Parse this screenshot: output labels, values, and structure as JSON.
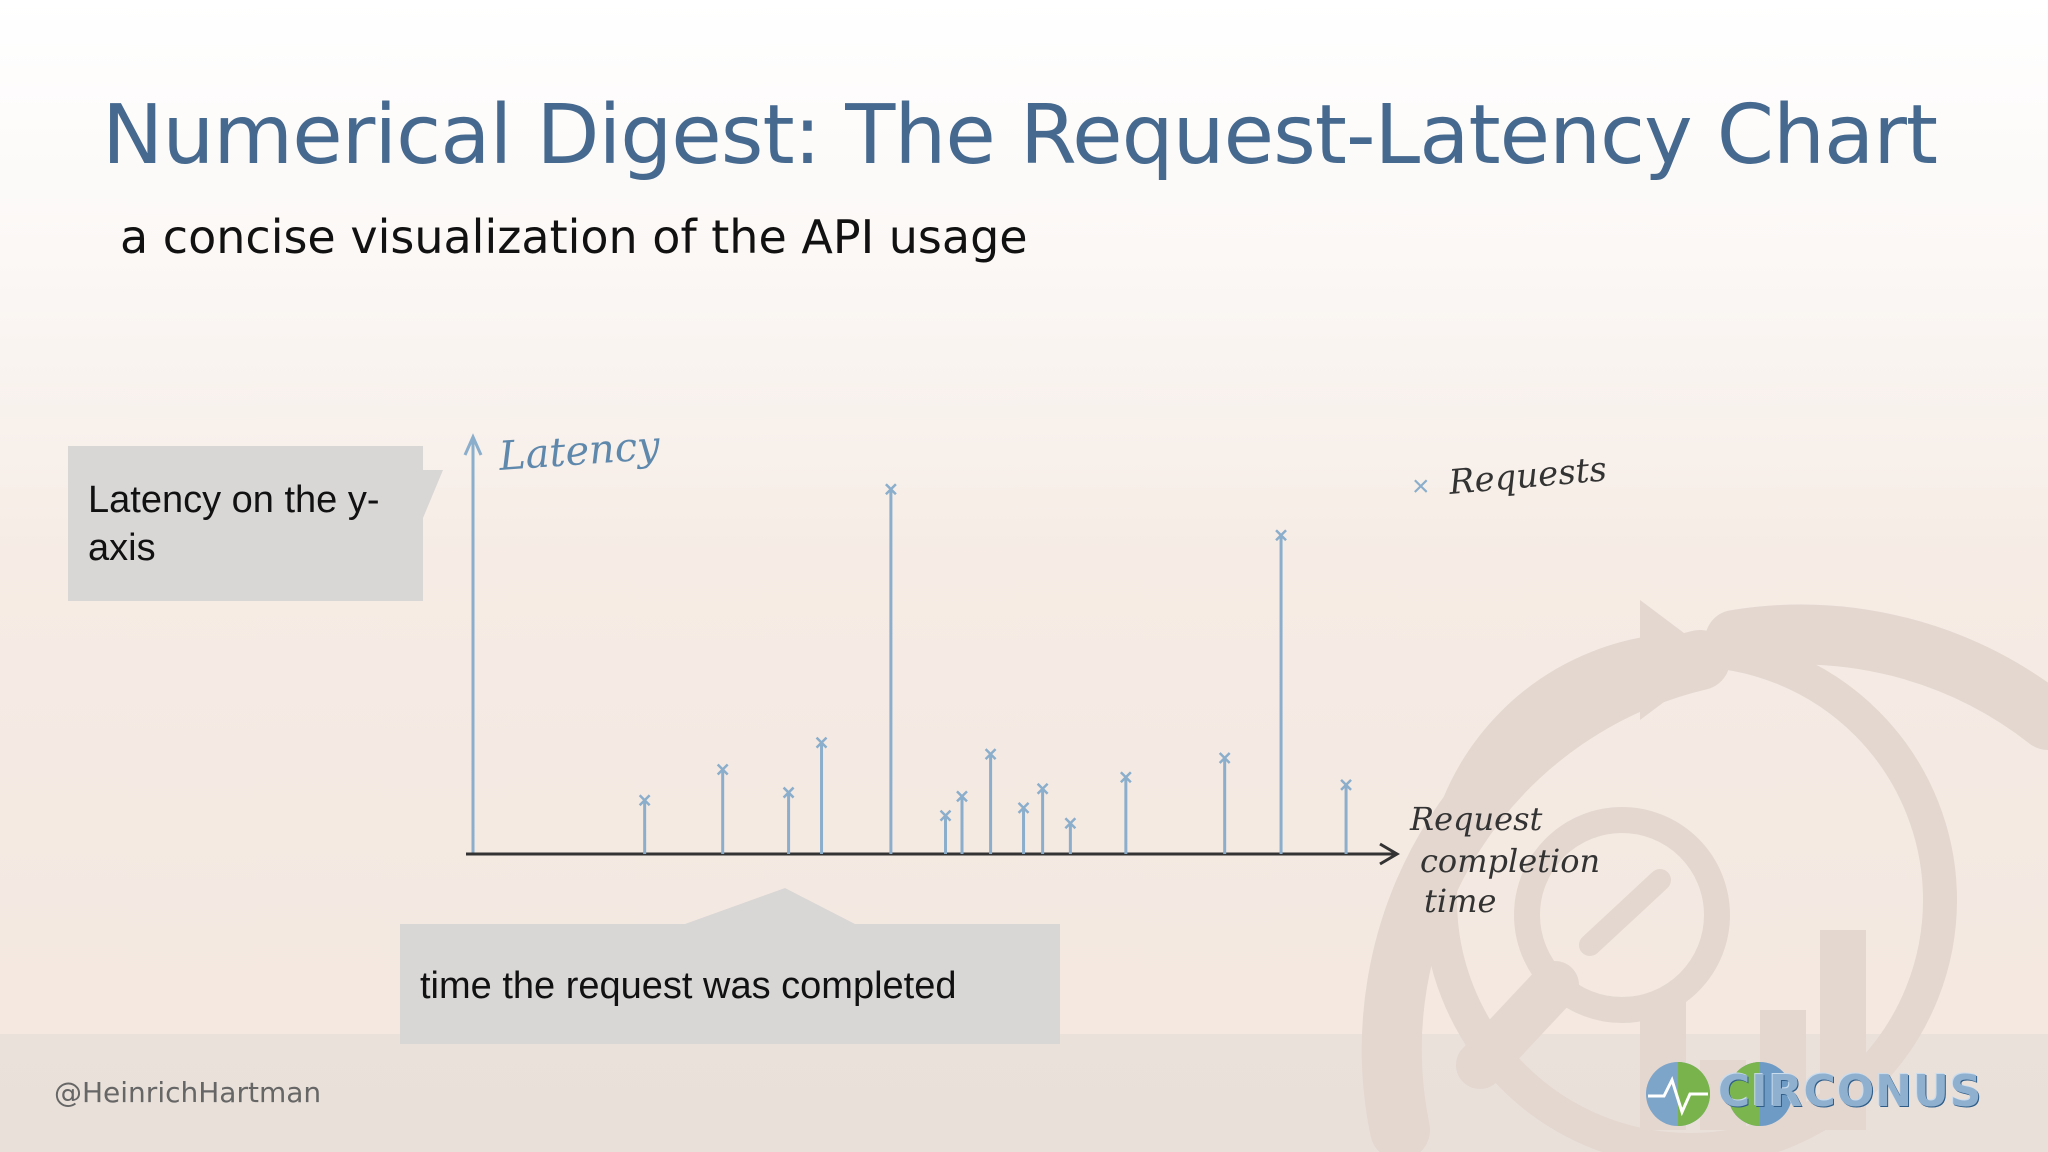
{
  "slide": {
    "title": "Numerical Digest: The Request-Latency Chart",
    "subtitle": "a concise visualization of the API usage",
    "callout_y": "Latency on the y-axis",
    "callout_x": "time the request was completed",
    "footer_handle": "@HeinrichHartman",
    "logo_text": "CIRCONUS"
  },
  "chart_data": {
    "type": "scatter",
    "style": "stem",
    "ylabel": "Latency",
    "xlabel": "Request completion time",
    "legend": {
      "entry": "Requests",
      "placement": "top-right"
    },
    "grid": false,
    "xlim": [
      0,
      100
    ],
    "ylim": [
      0,
      100
    ],
    "points": [
      {
        "x": 19.8,
        "y": 14
      },
      {
        "x": 28.8,
        "y": 22
      },
      {
        "x": 36.4,
        "y": 16
      },
      {
        "x": 40.2,
        "y": 29
      },
      {
        "x": 48.2,
        "y": 95
      },
      {
        "x": 54.5,
        "y": 10
      },
      {
        "x": 56.4,
        "y": 15
      },
      {
        "x": 59.7,
        "y": 26
      },
      {
        "x": 63.5,
        "y": 12
      },
      {
        "x": 65.7,
        "y": 17
      },
      {
        "x": 68.9,
        "y": 8
      },
      {
        "x": 75.3,
        "y": 20
      },
      {
        "x": 86.7,
        "y": 25
      },
      {
        "x": 93.2,
        "y": 83
      },
      {
        "x": 100.7,
        "y": 18
      }
    ],
    "colors": {
      "marks": "#8aaecb",
      "axis": "#333333",
      "label": "#5f88ad"
    }
  }
}
